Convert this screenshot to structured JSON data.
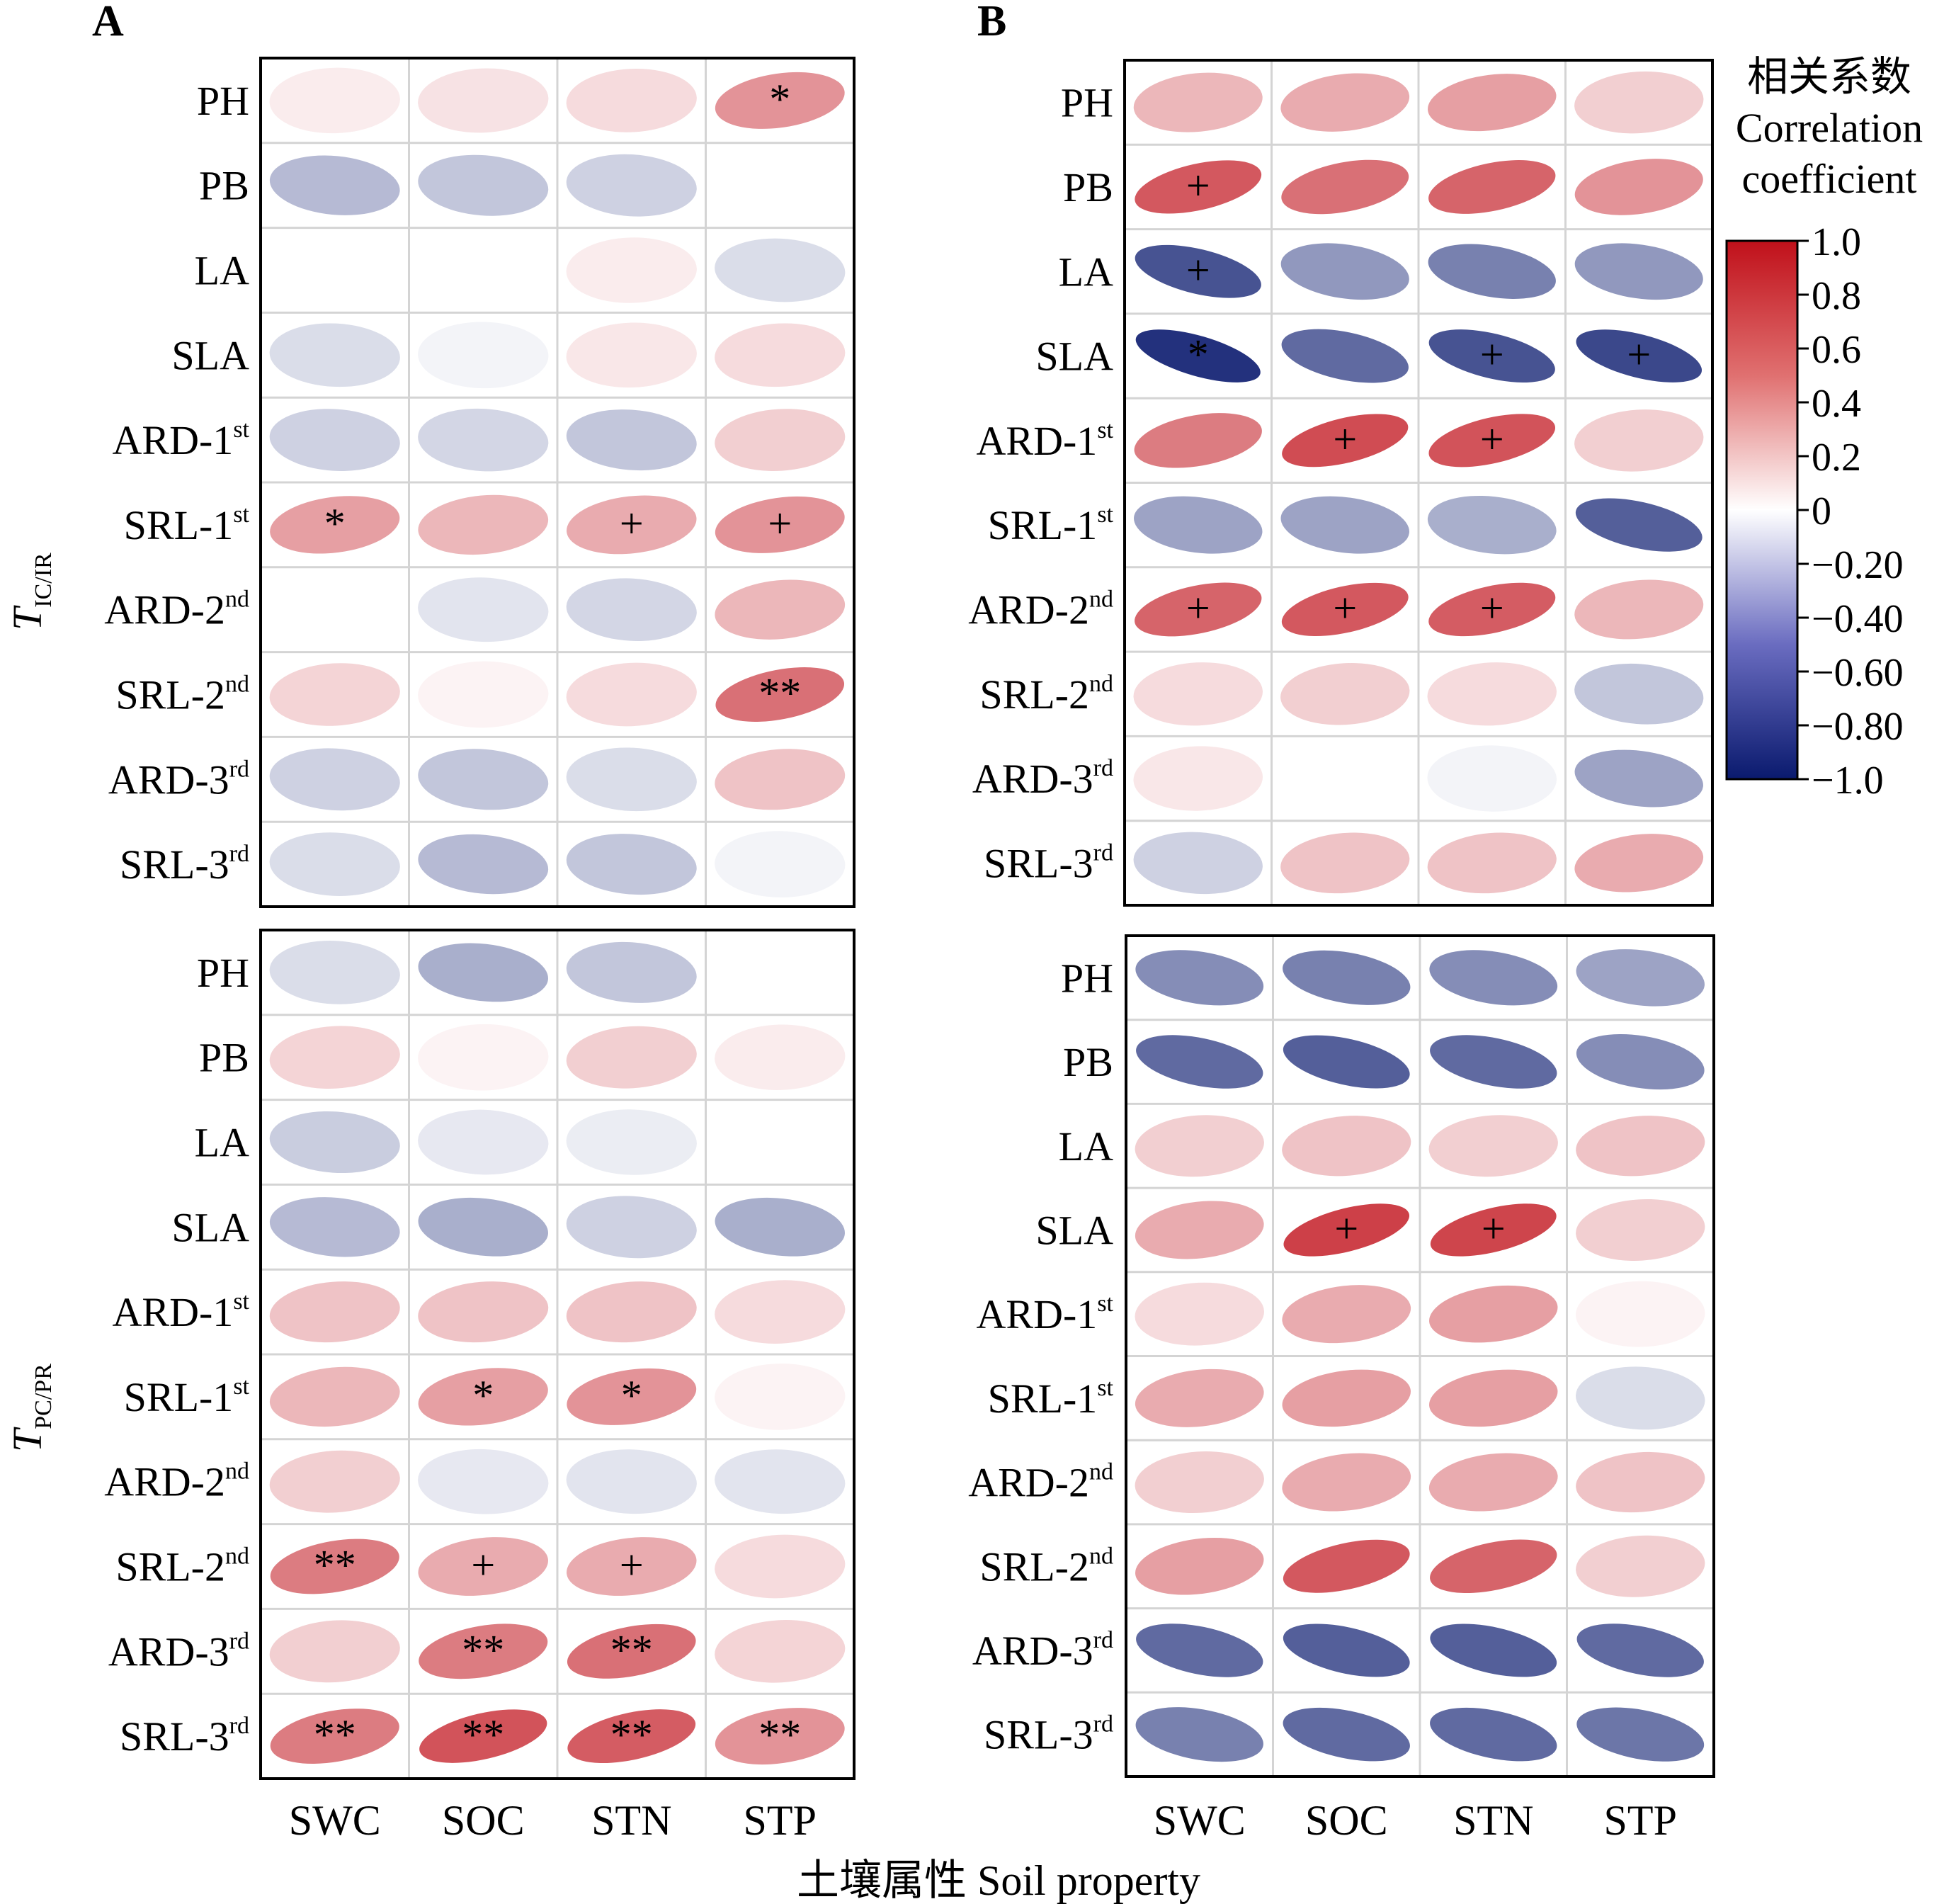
{
  "panel_labels": [
    "A",
    "B"
  ],
  "side_titles": [
    {
      "main": "T",
      "sub": "IC/IR"
    },
    {
      "main": "T",
      "sub": "PC/PR"
    }
  ],
  "legend": {
    "title_cn": "相关系数",
    "title_en_1": "Correlation",
    "title_en_2": "coefficient",
    "ticks": [
      "1.0",
      "0.8",
      "0.6",
      "0.4",
      "0.2",
      "0",
      "−0.20",
      "−0.40",
      "−0.60",
      "−0.80",
      "−1.0"
    ],
    "tick_values": [
      1.0,
      0.8,
      0.6,
      0.4,
      0.2,
      0,
      -0.2,
      -0.4,
      -0.6,
      -0.8,
      -1.0
    ],
    "colors": {
      "positive": "#c0101a",
      "zero": "#ffffff",
      "negative": "#0a1a6e"
    }
  },
  "x_title": "土壤属性 Soil property",
  "chart_data": {
    "type": "heatmap",
    "columns": [
      "SWC",
      "SOC",
      "STN",
      "STP"
    ],
    "rows": [
      {
        "base": "PH",
        "sup": ""
      },
      {
        "base": "PB",
        "sup": ""
      },
      {
        "base": "LA",
        "sup": ""
      },
      {
        "base": "SLA",
        "sup": ""
      },
      {
        "base": "ARD-1",
        "sup": "st"
      },
      {
        "base": "SRL-1",
        "sup": "st"
      },
      {
        "base": "ARD-2",
        "sup": "nd"
      },
      {
        "base": "SRL-2",
        "sup": "nd"
      },
      {
        "base": "ARD-3",
        "sup": "rd"
      },
      {
        "base": "SRL-3",
        "sup": "rd"
      }
    ],
    "vmin": -1.0,
    "vmax": 1.0,
    "panels": [
      {
        "id": "A-top",
        "values": [
          [
            0.08,
            0.12,
            0.15,
            0.45
          ],
          [
            -0.3,
            -0.25,
            -0.2,
            0.0
          ],
          [
            0.0,
            0.0,
            0.08,
            -0.15
          ],
          [
            -0.15,
            -0.05,
            0.1,
            0.15
          ],
          [
            -0.2,
            -0.18,
            -0.25,
            0.2
          ],
          [
            0.4,
            0.3,
            0.35,
            0.45
          ],
          [
            0.0,
            -0.12,
            -0.18,
            0.3
          ],
          [
            0.18,
            0.05,
            0.15,
            0.6
          ],
          [
            -0.2,
            -0.25,
            -0.15,
            0.25
          ],
          [
            -0.15,
            -0.3,
            -0.25,
            -0.05
          ]
        ],
        "sig": [
          [
            "",
            "",
            "",
            "*"
          ],
          [
            "",
            "",
            "",
            ""
          ],
          [
            "",
            "",
            "",
            ""
          ],
          [
            "",
            "",
            "",
            ""
          ],
          [
            "",
            "",
            "",
            ""
          ],
          [
            "*",
            "",
            "+",
            "+"
          ],
          [
            "",
            "",
            "",
            ""
          ],
          [
            "",
            "",
            "",
            "**"
          ],
          [
            "",
            "",
            "",
            ""
          ],
          [
            "",
            "",
            "",
            ""
          ]
        ]
      },
      {
        "id": "A-bottom",
        "values": [
          [
            -0.15,
            -0.35,
            -0.25,
            0.0
          ],
          [
            0.18,
            0.05,
            0.2,
            0.08
          ],
          [
            -0.22,
            -0.1,
            -0.08,
            0.0
          ],
          [
            -0.3,
            -0.35,
            -0.2,
            -0.35
          ],
          [
            0.25,
            0.25,
            0.25,
            0.15
          ],
          [
            0.3,
            0.4,
            0.45,
            0.05
          ],
          [
            0.2,
            -0.1,
            -0.12,
            -0.12
          ],
          [
            0.55,
            0.35,
            0.35,
            0.15
          ],
          [
            0.2,
            0.55,
            0.6,
            0.18
          ],
          [
            0.55,
            0.72,
            0.68,
            0.45
          ]
        ],
        "sig": [
          [
            "",
            "",
            "",
            ""
          ],
          [
            "",
            "",
            "",
            ""
          ],
          [
            "",
            "",
            "",
            ""
          ],
          [
            "",
            "",
            "",
            ""
          ],
          [
            "",
            "",
            "",
            ""
          ],
          [
            "",
            "*",
            "*",
            ""
          ],
          [
            "",
            "",
            "",
            ""
          ],
          [
            "**",
            "+",
            "+",
            ""
          ],
          [
            "",
            "**",
            "**",
            ""
          ],
          [
            "**",
            "**",
            "**",
            "**"
          ]
        ]
      },
      {
        "id": "B-top",
        "values": [
          [
            0.3,
            0.35,
            0.4,
            0.2
          ],
          [
            0.7,
            0.6,
            0.65,
            0.45
          ],
          [
            -0.75,
            -0.45,
            -0.55,
            -0.45
          ],
          [
            -0.9,
            -0.65,
            -0.75,
            -0.8
          ],
          [
            0.55,
            0.75,
            0.72,
            0.2
          ],
          [
            -0.4,
            -0.4,
            -0.35,
            -0.7
          ],
          [
            0.65,
            0.7,
            0.68,
            0.3
          ],
          [
            0.15,
            0.2,
            0.15,
            -0.25
          ],
          [
            0.1,
            0.0,
            -0.05,
            -0.4
          ],
          [
            -0.2,
            0.25,
            0.25,
            0.35
          ]
        ],
        "sig": [
          [
            "",
            "",
            "",
            ""
          ],
          [
            "+",
            "",
            "",
            ""
          ],
          [
            "+",
            "",
            "",
            ""
          ],
          [
            "*",
            "",
            "+",
            "+"
          ],
          [
            "",
            "+",
            "+",
            ""
          ],
          [
            "",
            "",
            "",
            ""
          ],
          [
            "+",
            "+",
            "+",
            ""
          ],
          [
            "",
            "",
            "",
            ""
          ],
          [
            "",
            "",
            "",
            ""
          ],
          [
            "",
            "",
            "",
            ""
          ]
        ]
      },
      {
        "id": "B-bottom",
        "values": [
          [
            -0.5,
            -0.55,
            -0.5,
            -0.4
          ],
          [
            -0.65,
            -0.7,
            -0.65,
            -0.5
          ],
          [
            0.2,
            0.25,
            0.2,
            0.25
          ],
          [
            0.35,
            0.8,
            0.78,
            0.2
          ],
          [
            0.15,
            0.35,
            0.4,
            0.05
          ],
          [
            0.35,
            0.4,
            0.4,
            -0.15
          ],
          [
            0.2,
            0.35,
            0.35,
            0.25
          ],
          [
            0.4,
            0.7,
            0.65,
            0.2
          ],
          [
            -0.65,
            -0.7,
            -0.7,
            -0.65
          ],
          [
            -0.55,
            -0.65,
            -0.65,
            -0.6
          ]
        ],
        "sig": [
          [
            "",
            "",
            "",
            ""
          ],
          [
            "",
            "",
            "",
            ""
          ],
          [
            "",
            "",
            "",
            ""
          ],
          [
            "",
            "+",
            "+",
            ""
          ],
          [
            "",
            "",
            "",
            ""
          ],
          [
            "",
            "",
            "",
            ""
          ],
          [
            "",
            "",
            "",
            ""
          ],
          [
            "",
            "",
            "",
            ""
          ],
          [
            "",
            "",
            "",
            ""
          ],
          [
            "",
            "",
            "",
            ""
          ]
        ]
      }
    ]
  }
}
